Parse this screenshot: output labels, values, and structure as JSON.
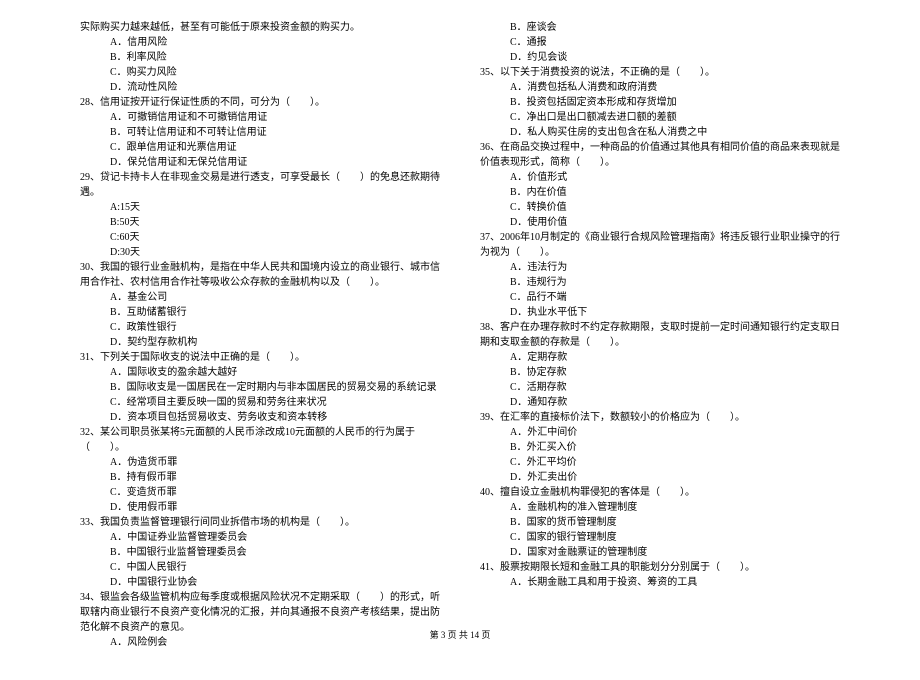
{
  "footer": "第 3 页  共 14 页",
  "left_column": [
    {
      "cls": "line",
      "text": "实际购买力越来越低，甚至有可能低于原来投资金额的购买力。"
    },
    {
      "cls": "line indent1",
      "text": "A．信用风险"
    },
    {
      "cls": "line indent1",
      "text": "B．利率风险"
    },
    {
      "cls": "line indent1",
      "text": "C．购买力风险"
    },
    {
      "cls": "line indent1",
      "text": "D．流动性风险"
    },
    {
      "cls": "line",
      "text": "28、信用证按开证行保证性质的不同，可分为（　　）。"
    },
    {
      "cls": "line indent1",
      "text": "A．可撤销信用证和不可撤销信用证"
    },
    {
      "cls": "line indent1",
      "text": "B．可转让信用证和不可转让信用证"
    },
    {
      "cls": "line indent1",
      "text": "C．跟单信用证和光票信用证"
    },
    {
      "cls": "line indent1",
      "text": "D．保兑信用证和无保兑信用证"
    },
    {
      "cls": "line",
      "text": "29、贷记卡持卡人在非现金交易是进行透支，可享受最长（　　）的免息还款期待遇。"
    },
    {
      "cls": "line indent1",
      "text": "A:15天"
    },
    {
      "cls": "line indent1",
      "text": "B:50天"
    },
    {
      "cls": "line indent1",
      "text": "C:60天"
    },
    {
      "cls": "line indent1",
      "text": "D:30天"
    },
    {
      "cls": "line",
      "text": "30、我国的银行业金融机构，是指在中华人民共和国境内设立的商业银行、城市信用合作社、农村信用合作社等吸收公众存款的金融机构以及（　　）。"
    },
    {
      "cls": "line indent1",
      "text": "A．基金公司"
    },
    {
      "cls": "line indent1",
      "text": "B．互助储蓄银行"
    },
    {
      "cls": "line indent1",
      "text": "C．政策性银行"
    },
    {
      "cls": "line indent1",
      "text": "D．契约型存款机构"
    },
    {
      "cls": "line",
      "text": "31、下列关于国际收支的说法中正确的是（　　）。"
    },
    {
      "cls": "line indent1",
      "text": "A．国际收支的盈余越大越好"
    },
    {
      "cls": "line indent1",
      "text": "B．国际收支是一国居民在一定时期内与非本国居民的贸易交易的系统记录"
    },
    {
      "cls": "line indent1",
      "text": "C．经常项目主要反映一国的贸易和劳务往来状况"
    },
    {
      "cls": "line indent1",
      "text": "D．资本项目包括贸易收支、劳务收支和资本转移"
    },
    {
      "cls": "line",
      "text": "32、某公司职员张某将5元面额的人民币涂改成10元面额的人民币的行为属于（　　）。"
    },
    {
      "cls": "line indent1",
      "text": "A．伪造货币罪"
    },
    {
      "cls": "line indent1",
      "text": "B．持有假币罪"
    },
    {
      "cls": "line indent1",
      "text": "C．变造货币罪"
    },
    {
      "cls": "line indent1",
      "text": "D．使用假币罪"
    },
    {
      "cls": "line",
      "text": "33、我国负责监督管理银行间同业拆借市场的机构是（　　）。"
    },
    {
      "cls": "line indent1",
      "text": "A．中国证券业监督管理委员会"
    },
    {
      "cls": "line indent1",
      "text": "B．中国银行业监督管理委员会"
    },
    {
      "cls": "line indent1",
      "text": "C．中国人民银行"
    },
    {
      "cls": "line indent1",
      "text": "D．中国银行业协会"
    },
    {
      "cls": "line",
      "text": "34、银监会各级监管机构应每季度或根据风险状况不定期采取（　　）的形式，听取辖内商业银行不良资产变化情况的汇报，并向其通报不良资产考核结果，提出防范化解不良资产的意见。"
    },
    {
      "cls": "line indent1",
      "text": "A．风险例会"
    }
  ],
  "right_column": [
    {
      "cls": "line indent1",
      "text": "B．座谈会"
    },
    {
      "cls": "line indent1",
      "text": "C．通报"
    },
    {
      "cls": "line indent1",
      "text": "D．约见会谈"
    },
    {
      "cls": "line",
      "text": "35、以下关于消费投资的说法，不正确的是（　　）。"
    },
    {
      "cls": "line indent1",
      "text": "A．消费包括私人消费和政府消费"
    },
    {
      "cls": "line indent1",
      "text": "B．投资包括固定资本形成和存货增加"
    },
    {
      "cls": "line indent1",
      "text": "C．净出口是出口额减去进口额的差额"
    },
    {
      "cls": "line indent1",
      "text": "D．私人购买住房的支出包含在私人消费之中"
    },
    {
      "cls": "line",
      "text": "36、在商品交换过程中，一种商品的价值通过其他具有相同价值的商品来表现就是价值表现形式，简称（　　）。"
    },
    {
      "cls": "line indent1",
      "text": "A．价值形式"
    },
    {
      "cls": "line indent1",
      "text": "B．内在价值"
    },
    {
      "cls": "line indent1",
      "text": "C．转换价值"
    },
    {
      "cls": "line indent1",
      "text": "D．使用价值"
    },
    {
      "cls": "line",
      "text": "37、2006年10月制定的《商业银行合规风险管理指南》将违反银行业职业操守的行为视为（　　）。"
    },
    {
      "cls": "line indent1",
      "text": "A．违法行为"
    },
    {
      "cls": "line indent1",
      "text": "B．违规行为"
    },
    {
      "cls": "line indent1",
      "text": "C．品行不端"
    },
    {
      "cls": "line indent1",
      "text": "D．执业水平低下"
    },
    {
      "cls": "line",
      "text": "38、客户在办理存款时不约定存款期限，支取时提前一定时间通知银行约定支取日期和支取金额的存款是（　　）。"
    },
    {
      "cls": "line indent1",
      "text": "A．定期存款"
    },
    {
      "cls": "line indent1",
      "text": "B．协定存款"
    },
    {
      "cls": "line indent1",
      "text": "C．活期存款"
    },
    {
      "cls": "line indent1",
      "text": "D．通知存款"
    },
    {
      "cls": "line",
      "text": "39、在汇率的直接标价法下，数额较小的价格应为（　　）。"
    },
    {
      "cls": "line indent1",
      "text": "A．外汇中间价"
    },
    {
      "cls": "line indent1",
      "text": "B．外汇买入价"
    },
    {
      "cls": "line indent1",
      "text": "C．外汇平均价"
    },
    {
      "cls": "line indent1",
      "text": "D．外汇卖出价"
    },
    {
      "cls": "line",
      "text": "40、擅自设立金融机构罪侵犯的客体是（　　）。"
    },
    {
      "cls": "line indent1",
      "text": "A．金融机构的准入管理制度"
    },
    {
      "cls": "line indent1",
      "text": "B．国家的货币管理制度"
    },
    {
      "cls": "line indent1",
      "text": "C．国家的银行管理制度"
    },
    {
      "cls": "line indent1",
      "text": "D．国家对金融票证的管理制度"
    },
    {
      "cls": "line",
      "text": "41、股票按期限长短和金融工具的职能划分分别属于（　　）。"
    },
    {
      "cls": "line indent1",
      "text": "A．长期金融工具和用于投资、筹资的工具"
    }
  ]
}
